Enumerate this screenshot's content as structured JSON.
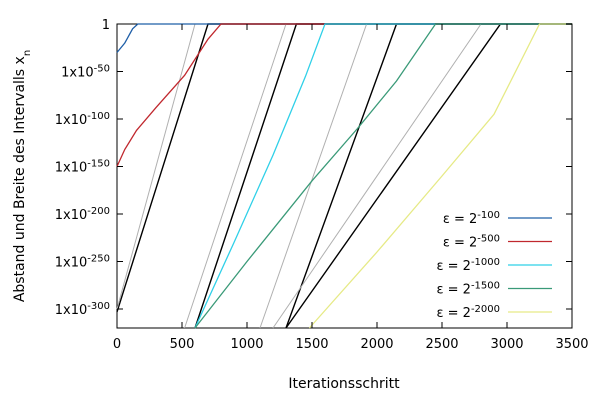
{
  "chart_data": {
    "type": "line",
    "xlabel": "Iterationsschritt",
    "ylabel": "Abstand und Breite des Intervalls x",
    "ylabel_sub": "n",
    "xlim": [
      0,
      3500
    ],
    "ylim_log10": [
      -320,
      0
    ],
    "y_scale": "log",
    "x_ticks": [
      "0",
      "500",
      "1000",
      "1500",
      "2000",
      "2500",
      "3000",
      "3500"
    ],
    "x_tick_values": [
      0,
      500,
      1000,
      1500,
      2000,
      2500,
      3000,
      3500
    ],
    "y_ticks": [
      {
        "text": "1",
        "base": "",
        "exp": "",
        "log10": 0
      },
      {
        "text": "",
        "base": "1x10",
        "exp": "-50",
        "log10": -50
      },
      {
        "text": "",
        "base": "1x10",
        "exp": "-100",
        "log10": -100
      },
      {
        "text": "",
        "base": "1x10",
        "exp": "-150",
        "log10": -150
      },
      {
        "text": "",
        "base": "1x10",
        "exp": "-200",
        "log10": -200
      },
      {
        "text": "",
        "base": "1x10",
        "exp": "-250",
        "log10": -250
      },
      {
        "text": "",
        "base": "1x10",
        "exp": "-300",
        "log10": -300
      }
    ],
    "grid": false,
    "legend_position": "bottom-right",
    "series": [
      {
        "name": "ε = 2",
        "exp": "-100",
        "color": "#1f5fa8",
        "x": [
          0,
          60,
          120,
          160,
          3500
        ],
        "log10_y": [
          -30,
          -20,
          -5,
          0,
          0
        ]
      },
      {
        "name": "ε = 2",
        "exp": "-500",
        "color": "#c0282e",
        "x": [
          0,
          60,
          150,
          300,
          520,
          700,
          800,
          3500
        ],
        "log10_y": [
          -150,
          -132,
          -112,
          -88,
          -54,
          -16,
          0,
          0
        ]
      },
      {
        "name": "ε = 2",
        "exp": "-1000",
        "color": "#2fd0e8",
        "x": [
          600,
          900,
          1200,
          1450,
          1600,
          3500
        ],
        "log10_y": [
          -320,
          -230,
          -138,
          -55,
          0,
          0
        ]
      },
      {
        "name": "ε = 2",
        "exp": "-1500",
        "color": "#3a9a78",
        "x": [
          600,
          1000,
          1500,
          1850,
          2150,
          2450,
          3500
        ],
        "log10_y": [
          -320,
          -250,
          -165,
          -110,
          -60,
          0,
          0
        ]
      },
      {
        "name": "ε = 2",
        "exp": "-2000",
        "color": "#e6ea86",
        "x": [
          1480,
          2000,
          2500,
          2900,
          3250,
          3500
        ],
        "log10_y": [
          -320,
          -240,
          -160,
          -95,
          0,
          0
        ]
      }
    ],
    "reference_lines": [
      {
        "color": "#000000",
        "x": [
          0,
          700,
          3500
        ],
        "log10_y": [
          -303,
          0,
          0
        ]
      },
      {
        "color": "#000000",
        "x": [
          600,
          1380,
          3500
        ],
        "log10_y": [
          -320,
          0,
          0
        ]
      },
      {
        "color": "#000000",
        "x": [
          1300,
          2150,
          3500
        ],
        "log10_y": [
          -320,
          0,
          0
        ]
      },
      {
        "color": "#000000",
        "x": [
          1300,
          2950,
          3500
        ],
        "log10_y": [
          -320,
          0,
          0
        ]
      },
      {
        "color": "#b0b0b0",
        "x": [
          0,
          600,
          3500
        ],
        "log10_y": [
          -300,
          0,
          0
        ]
      },
      {
        "color": "#b0b0b0",
        "x": [
          520,
          1300,
          3500
        ],
        "log10_y": [
          -320,
          0,
          0
        ]
      },
      {
        "color": "#b0b0b0",
        "x": [
          1100,
          1920,
          3500
        ],
        "log10_y": [
          -320,
          0,
          0
        ]
      },
      {
        "color": "#b0b0b0",
        "x": [
          1200,
          2800,
          3500
        ],
        "log10_y": [
          -320,
          0,
          0
        ]
      }
    ]
  }
}
